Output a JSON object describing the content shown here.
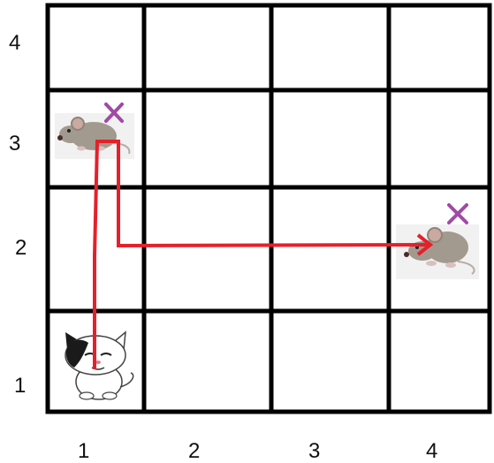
{
  "grid": {
    "columns": [
      "1",
      "2",
      "3",
      "4"
    ],
    "rows": [
      "1",
      "2",
      "3",
      "4"
    ]
  },
  "characters": {
    "cat": {
      "col": 1,
      "row": 1,
      "icon": "cat-icon"
    },
    "mice": [
      {
        "col": 1,
        "row": 3,
        "icon": "mouse-icon",
        "marked": true
      },
      {
        "col": 4,
        "row": 2,
        "icon": "mouse-icon",
        "marked": true
      }
    ]
  },
  "path": {
    "color": "#e5202a",
    "route": [
      {
        "from": "cat",
        "to": "mouse-1"
      },
      {
        "from": "mouse-1",
        "to": "mouse-2"
      }
    ]
  },
  "colors": {
    "grid_line": "#000000",
    "cross": "#a04aa5",
    "mouse_body": "#a39a8f",
    "cat_patch": "#1a1a1a"
  }
}
